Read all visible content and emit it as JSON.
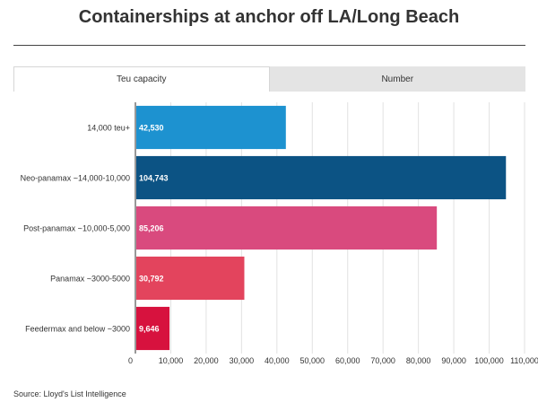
{
  "tabs": [
    {
      "label": "Teu capacity",
      "active": true
    },
    {
      "label": "Number",
      "active": false
    }
  ],
  "chart_data": {
    "type": "bar",
    "orientation": "horizontal",
    "title": "Containerships at anchor off LA/Long Beach",
    "categories": [
      "14,000 teu+",
      "Neo-panamax ~14,000-10,000",
      "Post-panamax ~10,000-5,000",
      "Panamax ~3000-5000",
      "Feedermax and below ~3000"
    ],
    "values": [
      42530,
      104743,
      85206,
      30792,
      9646
    ],
    "value_labels": [
      "42,530",
      "104,743",
      "85,206",
      "30,792",
      "9,646"
    ],
    "colors": [
      "#1d92d0",
      "#0c5384",
      "#d94a7e",
      "#e3445d",
      "#d7123e"
    ],
    "xlim": [
      0,
      110000
    ],
    "xticks": [
      0,
      10000,
      20000,
      30000,
      40000,
      50000,
      60000,
      70000,
      80000,
      90000,
      100000,
      110000
    ],
    "xtick_labels": [
      "0",
      "10,000",
      "20,000",
      "30,000",
      "40,000",
      "50,000",
      "60,000",
      "70,000",
      "80,000",
      "90,000",
      "100,000",
      "110,000"
    ],
    "grid": true,
    "legend": "none"
  },
  "source": "Source: Lloyd's List Intelligence"
}
